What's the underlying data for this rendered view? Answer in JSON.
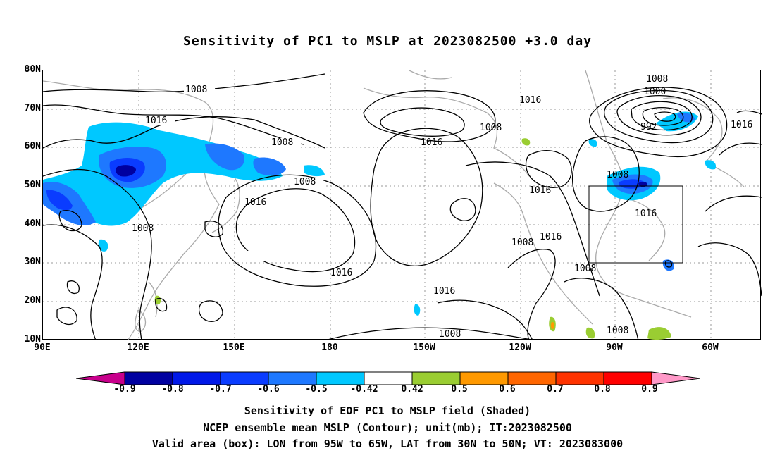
{
  "title": "Sensitivity of PC1 to MSLP at 2023082500 +3.0 day",
  "lat_ticks": [
    "80N",
    "70N",
    "60N",
    "50N",
    "40N",
    "30N",
    "20N",
    "10N"
  ],
  "lon_ticks": [
    "90E",
    "120E",
    "150E",
    "180",
    "150W",
    "120W",
    "90W",
    "60W"
  ],
  "contour_labels": [
    "1008",
    "1016",
    "1016",
    "1008",
    "1008",
    "1016",
    "1008",
    "1016",
    "1016",
    "1008",
    "1016",
    "1016",
    "1008",
    "1008",
    "1016",
    "1008",
    "1000",
    "992",
    "1016",
    "1008",
    "1016",
    "1008",
    "1008"
  ],
  "colorbar": {
    "labels": [
      "-0.9",
      "-0.8",
      "-0.7",
      "-0.6",
      "-0.5",
      "-0.42",
      "0.42",
      "0.5",
      "0.6",
      "0.7",
      "0.8",
      "0.9"
    ],
    "colors": [
      "#c8008c",
      "#0000a0",
      "#0018e8",
      "#0a3cff",
      "#1e78ff",
      "#00c8ff",
      "#ffffff",
      "#9acd32",
      "#ff9900",
      "#ff6600",
      "#ff3300",
      "#ff0000",
      "#ff99c8"
    ]
  },
  "footer": {
    "line1": "Sensitivity of EOF PC1 to MSLP field (Shaded)",
    "line2": "NCEP ensemble mean MSLP (Contour); unit(mb); IT:2023082500",
    "line3": "Valid area (box): LON from 95W to 65W, LAT from 30N to 50N; VT: 2023083000"
  }
}
